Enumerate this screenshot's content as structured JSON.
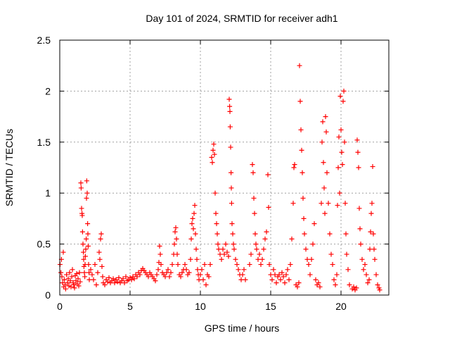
{
  "chart_data": {
    "type": "scatter",
    "title": "Day 101 of 2024, SRMTID for receiver adh1",
    "xlabel": "GPS time / hours",
    "ylabel": "SRMTID / TECUs",
    "xlim": [
      0,
      23.4
    ],
    "ylim": [
      0,
      2.5
    ],
    "x_ticks": [
      0,
      5,
      10,
      15,
      20
    ],
    "y_ticks": [
      0,
      0.5,
      1,
      1.5,
      2,
      2.5
    ],
    "x_tick_labels": [
      "0",
      "5",
      "10",
      "15",
      "20"
    ],
    "y_tick_labels": [
      "0",
      "0.5",
      "1",
      "1.5",
      "2",
      "2.5"
    ],
    "grid": true,
    "marker": "+",
    "colors": {
      "points": "#ff0000",
      "grid": "#a0a0a0",
      "axes": "#000000",
      "background": "#ffffff"
    },
    "series": [
      {
        "name": "SRMTID",
        "points": [
          [
            0.02,
            0.3
          ],
          [
            0.08,
            0.22
          ],
          [
            0.12,
            0.35
          ],
          [
            0.15,
            0.18
          ],
          [
            0.2,
            0.12
          ],
          [
            0.25,
            0.42
          ],
          [
            0.28,
            0.08
          ],
          [
            0.32,
            0.15
          ],
          [
            0.38,
            0.1
          ],
          [
            0.42,
            0.06
          ],
          [
            0.48,
            0.2
          ],
          [
            0.55,
            0.12
          ],
          [
            0.6,
            0.16
          ],
          [
            0.65,
            0.09
          ],
          [
            0.7,
            0.22
          ],
          [
            0.75,
            0.14
          ],
          [
            0.8,
            0.08
          ],
          [
            0.85,
            0.18
          ],
          [
            0.9,
            0.25
          ],
          [
            0.95,
            0.12
          ],
          [
            1.0,
            0.1
          ],
          [
            1.05,
            0.07
          ],
          [
            1.1,
            0.19
          ],
          [
            1.15,
            0.14
          ],
          [
            1.2,
            0.21
          ],
          [
            1.25,
            0.11
          ],
          [
            1.3,
            0.16
          ],
          [
            1.35,
            0.09
          ],
          [
            1.4,
            0.22
          ],
          [
            1.45,
            0.13
          ],
          [
            1.5,
            1.1
          ],
          [
            1.52,
            1.05
          ],
          [
            1.55,
            0.85
          ],
          [
            1.58,
            0.8
          ],
          [
            1.6,
            0.78
          ],
          [
            1.62,
            0.62
          ],
          [
            1.65,
            0.5
          ],
          [
            1.68,
            0.42
          ],
          [
            1.7,
            0.35
          ],
          [
            1.72,
            0.28
          ],
          [
            1.75,
            0.22
          ],
          [
            1.78,
            0.18
          ],
          [
            1.8,
            0.3
          ],
          [
            1.82,
            0.38
          ],
          [
            1.85,
            0.45
          ],
          [
            1.88,
            0.55
          ],
          [
            1.9,
            0.95
          ],
          [
            1.92,
            1.12
          ],
          [
            1.95,
            1.0
          ],
          [
            1.98,
            0.7
          ],
          [
            2.0,
            0.6
          ],
          [
            2.02,
            0.48
          ],
          [
            2.05,
            0.3
          ],
          [
            2.08,
            0.22
          ],
          [
            2.1,
            0.15
          ],
          [
            2.2,
            0.25
          ],
          [
            2.3,
            0.2
          ],
          [
            2.4,
            0.15
          ],
          [
            2.5,
            0.3
          ],
          [
            2.6,
            0.1
          ],
          [
            2.7,
            0.22
          ],
          [
            2.8,
            0.42
          ],
          [
            2.85,
            0.35
          ],
          [
            2.9,
            0.55
          ],
          [
            2.95,
            0.6
          ],
          [
            3.0,
            0.28
          ],
          [
            3.05,
            0.18
          ],
          [
            3.1,
            0.12
          ],
          [
            3.2,
            0.1
          ],
          [
            3.3,
            0.15
          ],
          [
            3.4,
            0.13
          ],
          [
            3.5,
            0.17
          ],
          [
            3.6,
            0.12
          ],
          [
            3.7,
            0.14
          ],
          [
            3.8,
            0.16
          ],
          [
            3.9,
            0.12
          ],
          [
            4.0,
            0.15
          ],
          [
            4.1,
            0.13
          ],
          [
            4.2,
            0.17
          ],
          [
            4.3,
            0.12
          ],
          [
            4.4,
            0.14
          ],
          [
            4.5,
            0.16
          ],
          [
            4.6,
            0.12
          ],
          [
            4.7,
            0.18
          ],
          [
            4.8,
            0.14
          ],
          [
            4.9,
            0.15
          ],
          [
            5.0,
            0.17
          ],
          [
            5.1,
            0.15
          ],
          [
            5.2,
            0.18
          ],
          [
            5.3,
            0.16
          ],
          [
            5.4,
            0.2
          ],
          [
            5.5,
            0.18
          ],
          [
            5.6,
            0.22
          ],
          [
            5.7,
            0.2
          ],
          [
            5.8,
            0.24
          ],
          [
            5.9,
            0.26
          ],
          [
            6.0,
            0.24
          ],
          [
            6.1,
            0.22
          ],
          [
            6.2,
            0.2
          ],
          [
            6.3,
            0.18
          ],
          [
            6.4,
            0.22
          ],
          [
            6.5,
            0.2
          ],
          [
            6.6,
            0.18
          ],
          [
            6.7,
            0.16
          ],
          [
            6.8,
            0.14
          ],
          [
            6.9,
            0.2
          ],
          [
            7.0,
            0.25
          ],
          [
            7.05,
            0.32
          ],
          [
            7.1,
            0.48
          ],
          [
            7.15,
            0.4
          ],
          [
            7.2,
            0.3
          ],
          [
            7.3,
            0.22
          ],
          [
            7.4,
            0.2
          ],
          [
            7.5,
            0.18
          ],
          [
            7.6,
            0.22
          ],
          [
            7.7,
            0.25
          ],
          [
            7.8,
            0.18
          ],
          [
            7.9,
            0.22
          ],
          [
            8.0,
            0.3
          ],
          [
            8.1,
            0.4
          ],
          [
            8.15,
            0.5
          ],
          [
            8.2,
            0.62
          ],
          [
            8.25,
            0.66
          ],
          [
            8.3,
            0.55
          ],
          [
            8.35,
            0.4
          ],
          [
            8.4,
            0.3
          ],
          [
            8.5,
            0.2
          ],
          [
            8.6,
            0.18
          ],
          [
            8.7,
            0.22
          ],
          [
            8.8,
            0.25
          ],
          [
            8.9,
            0.3
          ],
          [
            9.0,
            0.25
          ],
          [
            9.1,
            0.2
          ],
          [
            9.2,
            0.22
          ],
          [
            9.3,
            0.35
          ],
          [
            9.35,
            0.55
          ],
          [
            9.4,
            0.7
          ],
          [
            9.45,
            0.75
          ],
          [
            9.5,
            0.65
          ],
          [
            9.55,
            0.8
          ],
          [
            9.6,
            0.88
          ],
          [
            9.65,
            0.6
          ],
          [
            9.7,
            0.45
          ],
          [
            9.75,
            0.35
          ],
          [
            9.8,
            0.25
          ],
          [
            9.85,
            0.2
          ],
          [
            9.9,
            0.15
          ],
          [
            10.0,
            0.2
          ],
          [
            10.1,
            0.25
          ],
          [
            10.2,
            0.15
          ],
          [
            10.3,
            0.3
          ],
          [
            10.4,
            0.1
          ],
          [
            10.5,
            0.2
          ],
          [
            10.6,
            0.18
          ],
          [
            10.7,
            0.3
          ],
          [
            10.8,
            1.35
          ],
          [
            10.85,
            1.3
          ],
          [
            10.9,
            1.42
          ],
          [
            10.95,
            1.48
          ],
          [
            11.0,
            1.38
          ],
          [
            11.05,
            1.0
          ],
          [
            11.1,
            0.8
          ],
          [
            11.15,
            0.7
          ],
          [
            11.2,
            0.6
          ],
          [
            11.25,
            0.5
          ],
          [
            11.3,
            0.45
          ],
          [
            11.4,
            0.4
          ],
          [
            11.5,
            0.35
          ],
          [
            11.6,
            0.45
          ],
          [
            11.7,
            0.4
          ],
          [
            11.8,
            0.5
          ],
          [
            11.9,
            0.42
          ],
          [
            12.0,
            0.38
          ],
          [
            12.05,
            1.92
          ],
          [
            12.08,
            1.85
          ],
          [
            12.1,
            1.8
          ],
          [
            12.12,
            1.65
          ],
          [
            12.15,
            1.45
          ],
          [
            12.18,
            1.2
          ],
          [
            12.2,
            1.05
          ],
          [
            12.22,
            0.9
          ],
          [
            12.25,
            0.7
          ],
          [
            12.3,
            0.6
          ],
          [
            12.35,
            0.5
          ],
          [
            12.4,
            0.45
          ],
          [
            12.5,
            0.35
          ],
          [
            12.6,
            0.3
          ],
          [
            12.7,
            0.25
          ],
          [
            12.8,
            0.2
          ],
          [
            12.9,
            0.15
          ],
          [
            13.0,
            0.2
          ],
          [
            13.1,
            0.25
          ],
          [
            13.2,
            0.15
          ],
          [
            13.5,
            0.3
          ],
          [
            13.6,
            0.4
          ],
          [
            13.7,
            1.28
          ],
          [
            13.75,
            1.2
          ],
          [
            13.8,
            0.95
          ],
          [
            13.85,
            0.8
          ],
          [
            13.9,
            0.6
          ],
          [
            13.95,
            0.5
          ],
          [
            14.0,
            0.45
          ],
          [
            14.1,
            0.35
          ],
          [
            14.2,
            0.4
          ],
          [
            14.3,
            0.3
          ],
          [
            14.4,
            0.35
          ],
          [
            14.5,
            0.45
          ],
          [
            14.6,
            0.55
          ],
          [
            14.7,
            0.62
          ],
          [
            14.8,
            1.18
          ],
          [
            14.85,
            0.86
          ],
          [
            14.9,
            0.3
          ],
          [
            15.0,
            0.2
          ],
          [
            15.1,
            0.15
          ],
          [
            15.2,
            0.25
          ],
          [
            15.3,
            0.2
          ],
          [
            15.4,
            0.12
          ],
          [
            15.5,
            0.18
          ],
          [
            15.6,
            0.2
          ],
          [
            15.7,
            0.15
          ],
          [
            15.8,
            0.22
          ],
          [
            15.9,
            0.18
          ],
          [
            16.0,
            0.12
          ],
          [
            16.1,
            0.2
          ],
          [
            16.2,
            0.25
          ],
          [
            16.3,
            0.15
          ],
          [
            16.4,
            0.3
          ],
          [
            16.5,
            0.55
          ],
          [
            16.6,
            0.9
          ],
          [
            16.65,
            1.25
          ],
          [
            16.7,
            1.28
          ],
          [
            16.8,
            0.1
          ],
          [
            16.9,
            0.08
          ],
          [
            17.0,
            0.12
          ],
          [
            17.05,
            2.25
          ],
          [
            17.1,
            1.9
          ],
          [
            17.15,
            1.62
          ],
          [
            17.2,
            1.42
          ],
          [
            17.25,
            1.2
          ],
          [
            17.3,
            0.95
          ],
          [
            17.35,
            0.75
          ],
          [
            17.4,
            0.6
          ],
          [
            17.5,
            0.45
          ],
          [
            17.6,
            0.35
          ],
          [
            17.7,
            0.3
          ],
          [
            17.8,
            0.2
          ],
          [
            17.9,
            0.35
          ],
          [
            18.0,
            0.5
          ],
          [
            18.1,
            0.7
          ],
          [
            18.2,
            0.15
          ],
          [
            18.3,
            0.1
          ],
          [
            18.4,
            0.12
          ],
          [
            18.5,
            0.08
          ],
          [
            18.6,
            0.9
          ],
          [
            18.65,
            1.5
          ],
          [
            18.7,
            1.7
          ],
          [
            18.75,
            1.3
          ],
          [
            18.8,
            1.05
          ],
          [
            18.85,
            0.8
          ],
          [
            18.9,
            1.75
          ],
          [
            18.95,
            1.6
          ],
          [
            19.0,
            1.2
          ],
          [
            19.1,
            0.9
          ],
          [
            19.2,
            0.6
          ],
          [
            19.3,
            0.4
          ],
          [
            19.4,
            0.3
          ],
          [
            19.5,
            0.15
          ],
          [
            19.6,
            0.1
          ],
          [
            19.7,
            0.2
          ],
          [
            19.75,
            0.88
          ],
          [
            19.8,
            1.25
          ],
          [
            19.85,
            1.55
          ],
          [
            19.9,
            1.0
          ],
          [
            19.95,
            1.95
          ],
          [
            20.0,
            1.62
          ],
          [
            20.05,
            1.4
          ],
          [
            20.1,
            1.28
          ],
          [
            20.15,
            1.9
          ],
          [
            20.2,
            2.0
          ],
          [
            20.25,
            1.5
          ],
          [
            20.3,
            0.9
          ],
          [
            20.35,
            0.6
          ],
          [
            20.4,
            0.4
          ],
          [
            20.5,
            0.25
          ],
          [
            20.6,
            0.1
          ],
          [
            20.8,
            0.06
          ],
          [
            20.9,
            0.08
          ],
          [
            21.0,
            0.05
          ],
          [
            21.1,
            0.07
          ],
          [
            21.15,
            1.52
          ],
          [
            21.2,
            1.4
          ],
          [
            21.25,
            1.25
          ],
          [
            21.3,
            0.85
          ],
          [
            21.35,
            0.65
          ],
          [
            21.4,
            0.5
          ],
          [
            21.5,
            0.35
          ],
          [
            21.6,
            0.25
          ],
          [
            21.7,
            0.3
          ],
          [
            21.8,
            0.2
          ],
          [
            21.9,
            0.12
          ],
          [
            22.0,
            0.15
          ],
          [
            22.05,
            0.45
          ],
          [
            22.1,
            0.62
          ],
          [
            22.15,
            0.8
          ],
          [
            22.2,
            0.9
          ],
          [
            22.25,
            1.26
          ],
          [
            22.3,
            0.6
          ],
          [
            22.35,
            0.45
          ],
          [
            22.4,
            0.35
          ],
          [
            22.5,
            0.2
          ],
          [
            22.6,
            0.1
          ],
          [
            22.7,
            0.07
          ],
          [
            22.75,
            0.05
          ]
        ]
      }
    ]
  }
}
